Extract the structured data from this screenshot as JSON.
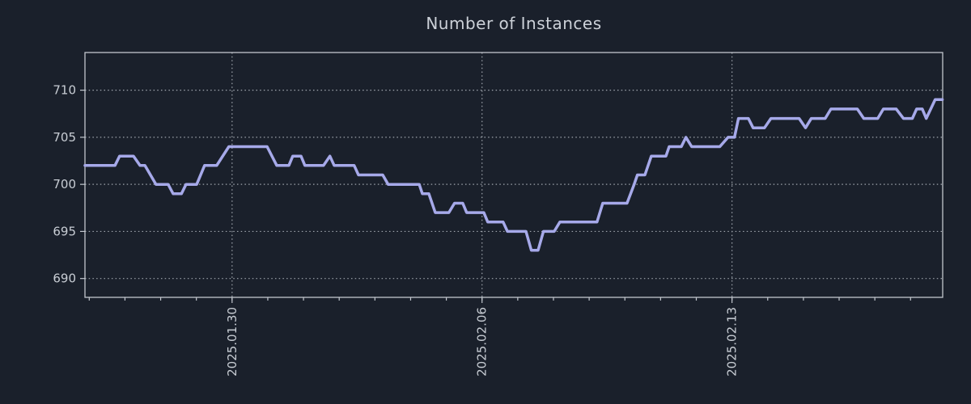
{
  "title": "Number of Instances",
  "colors": {
    "background": "#1a202b",
    "line": "#a6a9e9",
    "axis": "#c2c7ce",
    "grid": "#a0a6ae",
    "tick_text": "#c8cdd4",
    "title_text": "#ccd1d8"
  },
  "chart_data": {
    "type": "line",
    "title": "Number of Instances",
    "xlabel": "",
    "ylabel": "",
    "grid": true,
    "legend": false,
    "x_unit": "days",
    "xlim": [
      0,
      24.02
    ],
    "ylim": [
      688,
      714
    ],
    "y_ticks": [
      {
        "value": 690,
        "label": "690"
      },
      {
        "value": 695,
        "label": "695"
      },
      {
        "value": 700,
        "label": "700"
      },
      {
        "value": 705,
        "label": "705"
      },
      {
        "value": 710,
        "label": "710"
      }
    ],
    "x_major_ticks": [
      {
        "value": 4.12,
        "label": "2025.01.30"
      },
      {
        "value": 11.12,
        "label": "2025.02.06"
      },
      {
        "value": 18.12,
        "label": "2025.02.13"
      }
    ],
    "x_minor_ticks": {
      "start": 0.12,
      "step": 1,
      "count": 24
    },
    "series": [
      {
        "name": "instances",
        "points": [
          [
            0.0,
            702
          ],
          [
            0.84,
            702
          ],
          [
            0.97,
            703
          ],
          [
            1.36,
            703
          ],
          [
            1.54,
            702
          ],
          [
            1.68,
            702
          ],
          [
            1.99,
            700
          ],
          [
            2.33,
            700
          ],
          [
            2.47,
            699
          ],
          [
            2.7,
            699
          ],
          [
            2.83,
            700
          ],
          [
            3.13,
            700
          ],
          [
            3.35,
            702
          ],
          [
            3.69,
            702
          ],
          [
            4.03,
            704
          ],
          [
            5.1,
            704
          ],
          [
            5.37,
            702
          ],
          [
            5.71,
            702
          ],
          [
            5.82,
            703
          ],
          [
            6.05,
            703
          ],
          [
            6.16,
            702
          ],
          [
            6.68,
            702
          ],
          [
            6.86,
            703
          ],
          [
            6.98,
            702
          ],
          [
            7.54,
            702
          ],
          [
            7.66,
            701
          ],
          [
            8.34,
            701
          ],
          [
            8.49,
            700
          ],
          [
            9.36,
            700
          ],
          [
            9.45,
            699
          ],
          [
            9.63,
            699
          ],
          [
            9.81,
            697
          ],
          [
            10.19,
            697
          ],
          [
            10.35,
            698
          ],
          [
            10.58,
            698
          ],
          [
            10.69,
            697
          ],
          [
            11.17,
            697
          ],
          [
            11.28,
            696
          ],
          [
            11.71,
            696
          ],
          [
            11.83,
            695
          ],
          [
            12.35,
            695
          ],
          [
            12.5,
            693
          ],
          [
            12.69,
            693
          ],
          [
            12.84,
            695
          ],
          [
            13.14,
            695
          ],
          [
            13.3,
            696
          ],
          [
            14.34,
            696
          ],
          [
            14.5,
            698
          ],
          [
            15.18,
            698
          ],
          [
            15.38,
            700
          ],
          [
            15.47,
            701
          ],
          [
            15.68,
            701
          ],
          [
            15.86,
            703
          ],
          [
            16.27,
            703
          ],
          [
            16.36,
            704
          ],
          [
            16.7,
            704
          ],
          [
            16.83,
            705
          ],
          [
            16.99,
            704
          ],
          [
            17.78,
            704
          ],
          [
            18.01,
            705
          ],
          [
            18.19,
            705
          ],
          [
            18.3,
            707
          ],
          [
            18.58,
            707
          ],
          [
            18.71,
            706
          ],
          [
            19.03,
            706
          ],
          [
            19.21,
            707
          ],
          [
            20.0,
            707
          ],
          [
            20.18,
            706
          ],
          [
            20.34,
            707
          ],
          [
            20.73,
            707
          ],
          [
            20.89,
            708
          ],
          [
            21.63,
            708
          ],
          [
            21.81,
            707
          ],
          [
            22.2,
            707
          ],
          [
            22.36,
            708
          ],
          [
            22.72,
            708
          ],
          [
            22.92,
            707
          ],
          [
            23.17,
            707
          ],
          [
            23.29,
            708
          ],
          [
            23.45,
            708
          ],
          [
            23.56,
            707
          ],
          [
            23.81,
            709
          ],
          [
            24.01,
            709
          ]
        ]
      }
    ]
  }
}
